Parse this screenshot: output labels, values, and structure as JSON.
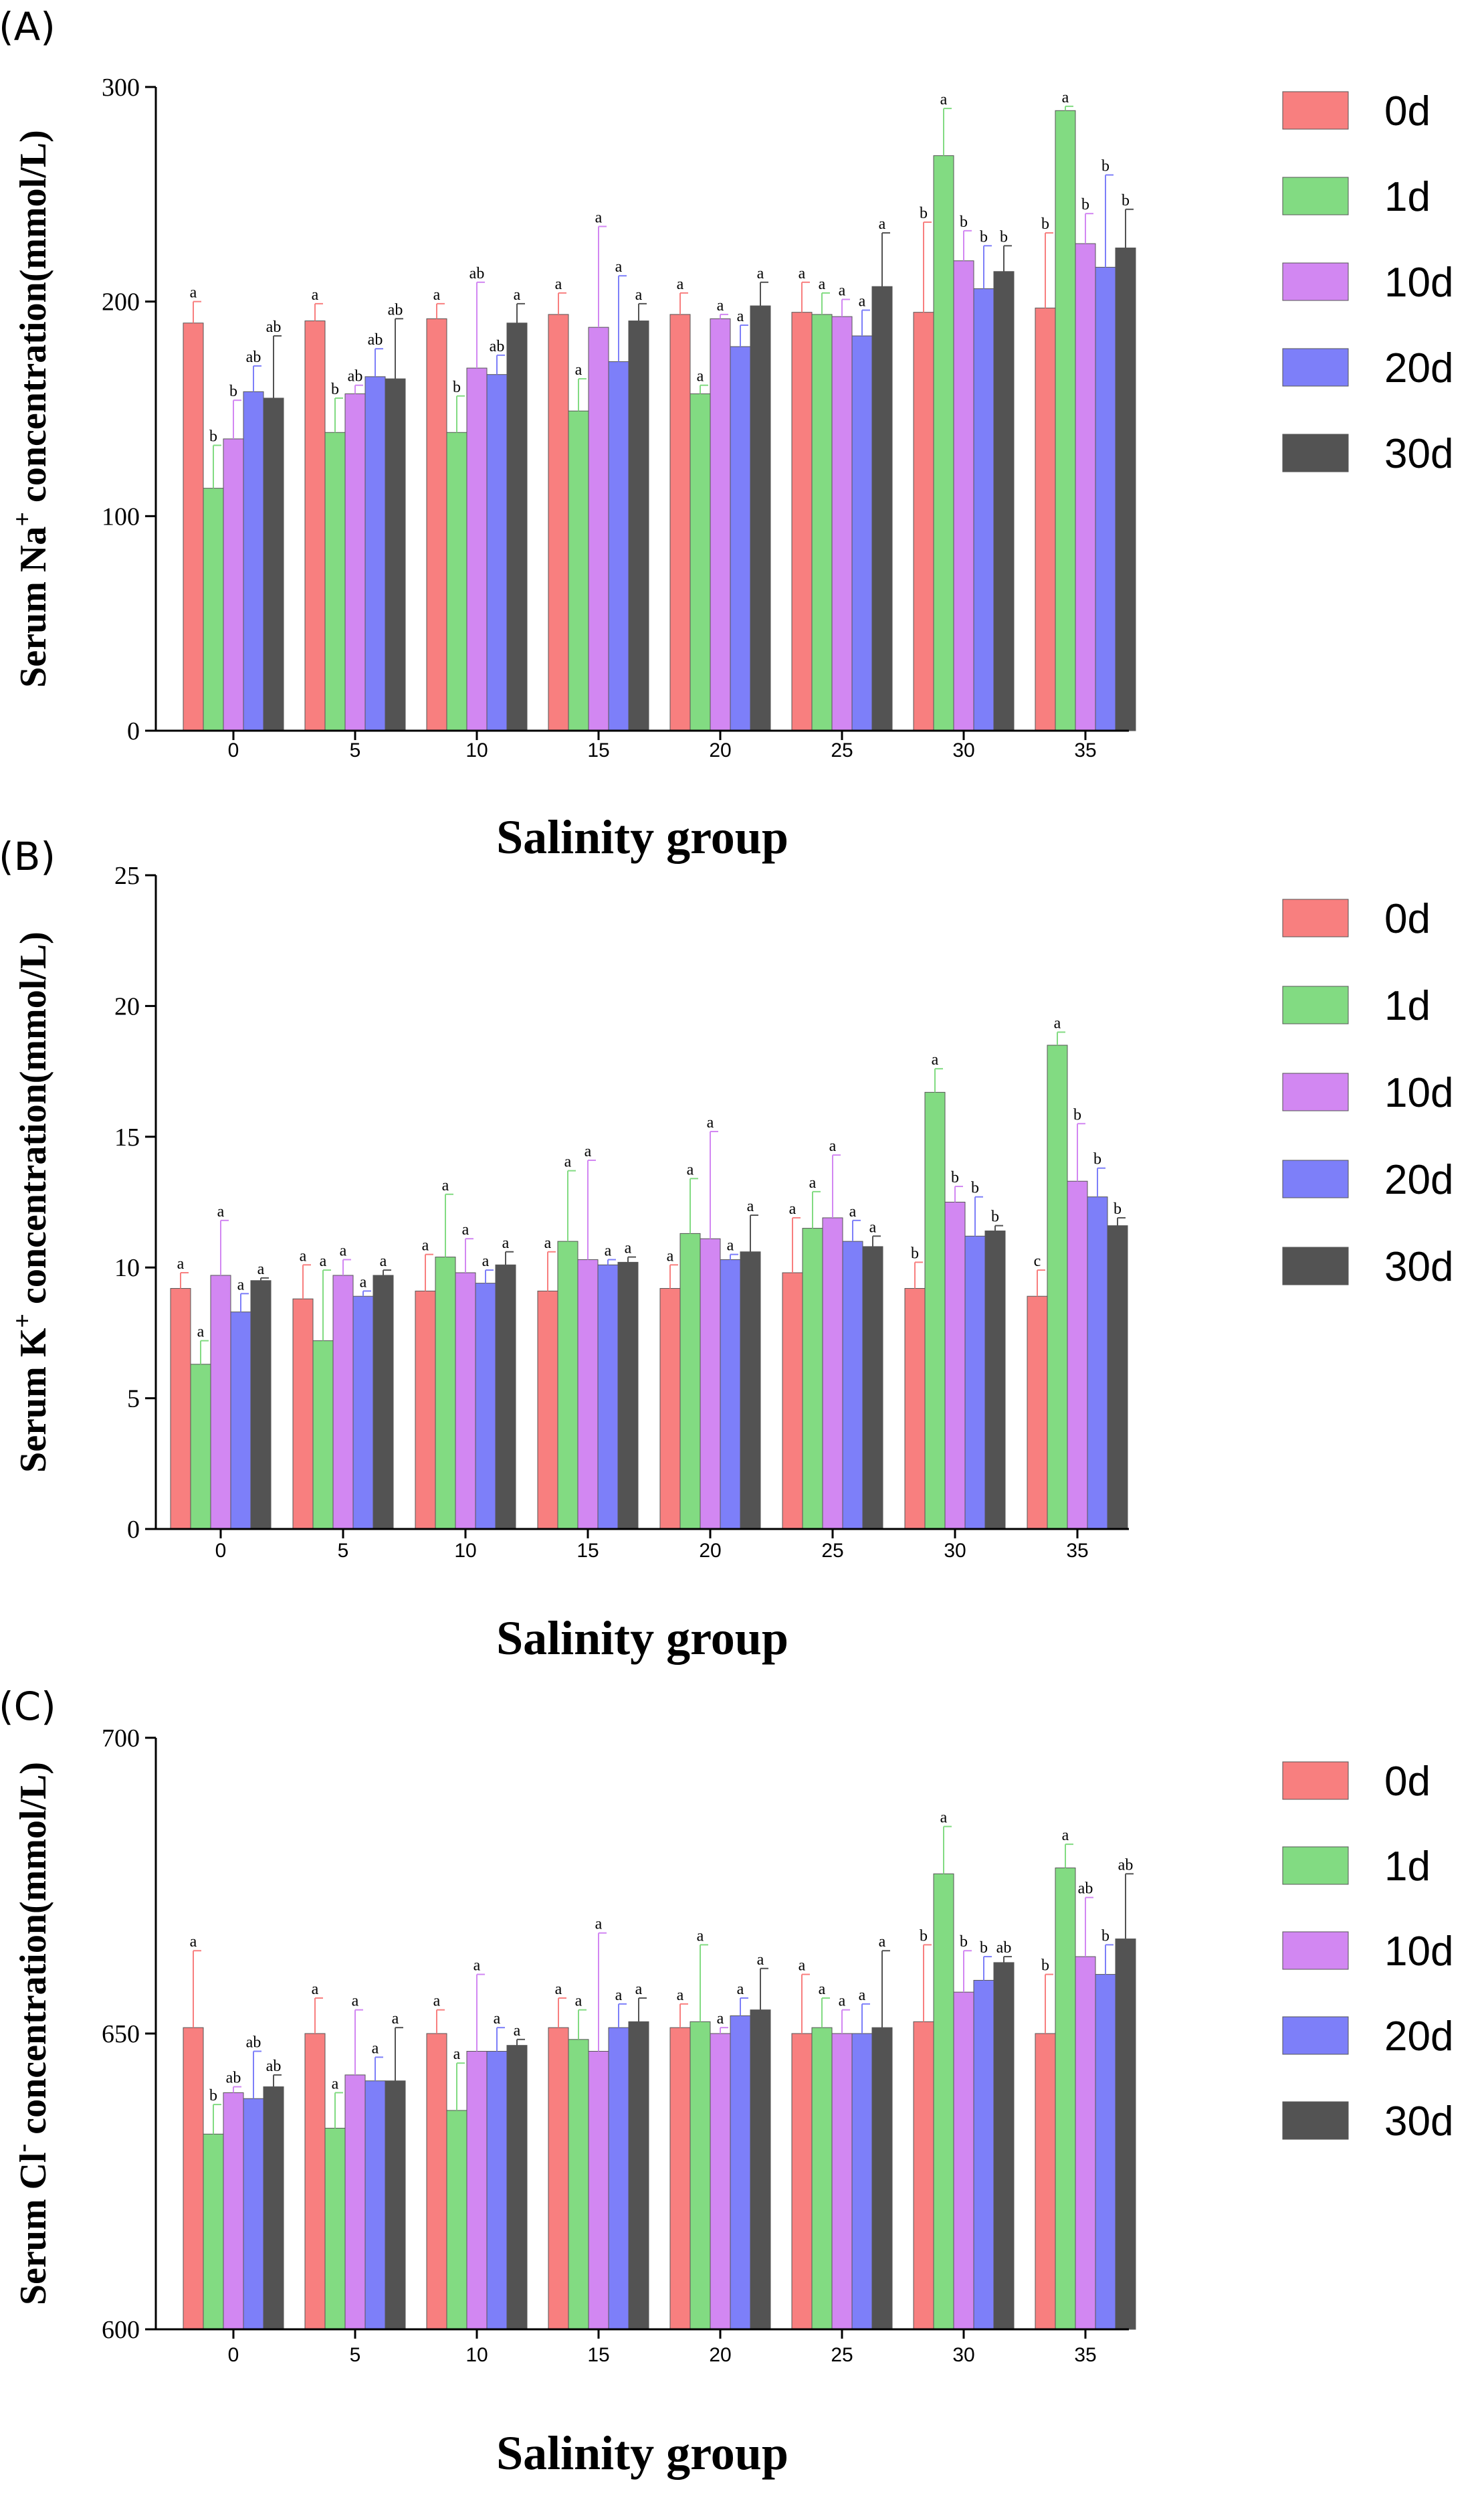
{
  "chart_data": [
    {
      "type": "bar",
      "panel_label": "(A)",
      "ylabel_prefix": "Serum Na",
      "ylabel_sup": "+",
      "ylabel_suffix": " concentration(mmol/L)",
      "xlabel": "Salinity group",
      "categories": [
        "0",
        "5",
        "10",
        "15",
        "20",
        "25",
        "30",
        "35"
      ],
      "ylim": [
        0,
        300
      ],
      "yticks": [
        0,
        100,
        200,
        300
      ],
      "series": [
        {
          "name": "0d",
          "color": "#f87f7f",
          "values": [
            190,
            191,
            192,
            194,
            194,
            195,
            195,
            197
          ],
          "errors": [
            10,
            8,
            7,
            10,
            10,
            14,
            42,
            35
          ],
          "letters": [
            "a",
            "a",
            "a",
            "a",
            "a",
            "a",
            "b",
            "b"
          ]
        },
        {
          "name": "1d",
          "color": "#82db82",
          "values": [
            113,
            139,
            139,
            149,
            157,
            194,
            268,
            289
          ],
          "errors": [
            20,
            16,
            17,
            15,
            4,
            10,
            22,
            2
          ],
          "letters": [
            "b",
            "b",
            "b",
            "a",
            "a",
            "a",
            "a",
            "a"
          ]
        },
        {
          "name": "10d",
          "color": "#d287f2",
          "values": [
            136,
            157,
            169,
            188,
            192,
            193,
            219,
            227
          ],
          "errors": [
            18,
            4,
            40,
            47,
            2,
            8,
            14,
            14
          ],
          "letters": [
            "b",
            "ab",
            "ab",
            "a",
            "a",
            "a",
            "b",
            "b"
          ]
        },
        {
          "name": "20d",
          "color": "#7d7ff9",
          "values": [
            158,
            165,
            166,
            172,
            179,
            184,
            206,
            216
          ],
          "errors": [
            12,
            13,
            9,
            40,
            10,
            12,
            20,
            43
          ],
          "letters": [
            "ab",
            "ab",
            "ab",
            "a",
            "a",
            "a",
            "b",
            "b"
          ]
        },
        {
          "name": "30d",
          "color": "#535353",
          "values": [
            155,
            164,
            190,
            191,
            198,
            207,
            214,
            225
          ],
          "errors": [
            29,
            28,
            9,
            8,
            11,
            25,
            12,
            18
          ],
          "letters": [
            "ab",
            "ab",
            "a",
            "a",
            "a",
            "a",
            "b",
            "b"
          ]
        }
      ]
    },
    {
      "type": "bar",
      "panel_label": "(B)",
      "ylabel_prefix": "Serum K",
      "ylabel_sup": "+",
      "ylabel_suffix": " concentration(mmol/L)",
      "xlabel": "Salinity group",
      "categories": [
        "0",
        "5",
        "10",
        "15",
        "20",
        "25",
        "30",
        "35"
      ],
      "ylim": [
        0,
        25
      ],
      "yticks": [
        0,
        5,
        10,
        15,
        20,
        25
      ],
      "series": [
        {
          "name": "0d",
          "color": "#f87f7f",
          "values": [
            9.2,
            8.8,
            9.1,
            9.1,
            9.2,
            9.8,
            9.2,
            8.9
          ],
          "errors": [
            0.6,
            1.3,
            1.4,
            1.5,
            0.9,
            2.1,
            1.0,
            1.0
          ],
          "letters": [
            "a",
            "a",
            "a",
            "a",
            "a",
            "a",
            "b",
            "c"
          ]
        },
        {
          "name": "1d",
          "color": "#82db82",
          "values": [
            6.3,
            7.2,
            10.4,
            11.0,
            11.3,
            11.5,
            16.7,
            18.5
          ],
          "errors": [
            0.9,
            2.7,
            2.4,
            2.7,
            2.1,
            1.4,
            0.9,
            0.5
          ],
          "letters": [
            "a",
            "a",
            "a",
            "a",
            "a",
            "a",
            "a",
            "a"
          ]
        },
        {
          "name": "10d",
          "color": "#d287f2",
          "values": [
            9.7,
            9.7,
            9.8,
            10.3,
            11.1,
            11.9,
            12.5,
            13.3
          ],
          "errors": [
            2.1,
            0.6,
            1.3,
            3.8,
            4.1,
            2.4,
            0.6,
            2.2
          ],
          "letters": [
            "a",
            "a",
            "a",
            "a",
            "a",
            "a",
            "b",
            "b"
          ]
        },
        {
          "name": "20d",
          "color": "#7d7ff9",
          "values": [
            8.3,
            8.9,
            9.4,
            10.1,
            10.3,
            11.0,
            11.2,
            12.7
          ],
          "errors": [
            0.7,
            0.2,
            0.5,
            0.2,
            0.2,
            0.8,
            1.5,
            1.1
          ],
          "letters": [
            "a",
            "a",
            "a",
            "a",
            "a",
            "a",
            "b",
            "b"
          ]
        },
        {
          "name": "30d",
          "color": "#535353",
          "values": [
            9.5,
            9.7,
            10.1,
            10.2,
            10.6,
            10.8,
            11.4,
            11.6
          ],
          "errors": [
            0.1,
            0.2,
            0.5,
            0.2,
            1.4,
            0.4,
            0.2,
            0.3
          ],
          "letters": [
            "a",
            "a",
            "a",
            "a",
            "a",
            "a",
            "b",
            "b"
          ]
        }
      ]
    },
    {
      "type": "bar",
      "panel_label": "(C)",
      "ylabel_prefix": "Serum Cl",
      "ylabel_sup": "-",
      "ylabel_suffix": " concentration(mmol/L)",
      "xlabel": "Salinity group",
      "categories": [
        "0",
        "5",
        "10",
        "15",
        "20",
        "25",
        "30",
        "35"
      ],
      "ylim": [
        600,
        700
      ],
      "yticks": [
        600,
        650,
        700
      ],
      "series": [
        {
          "name": "0d",
          "color": "#f87f7f",
          "values": [
            651,
            650,
            650,
            651,
            651,
            650,
            652,
            650
          ],
          "errors": [
            13,
            6,
            4,
            5,
            4,
            10,
            13,
            10
          ],
          "letters": [
            "a",
            "a",
            "a",
            "a",
            "a",
            "a",
            "b",
            "b"
          ]
        },
        {
          "name": "1d",
          "color": "#82db82",
          "values": [
            633,
            634,
            637,
            649,
            652,
            651,
            677,
            678
          ],
          "errors": [
            5,
            6,
            8,
            5,
            13,
            5,
            8,
            4
          ],
          "letters": [
            "b",
            "a",
            "a",
            "a",
            "a",
            "a",
            "a",
            "a"
          ]
        },
        {
          "name": "10d",
          "color": "#d287f2",
          "values": [
            640,
            643,
            647,
            647,
            650,
            650,
            657,
            663
          ],
          "errors": [
            1,
            11,
            13,
            20,
            1,
            4,
            7,
            10
          ],
          "letters": [
            "ab",
            "a",
            "a",
            "a",
            "a",
            "a",
            "b",
            "ab"
          ]
        },
        {
          "name": "20d",
          "color": "#7d7ff9",
          "values": [
            639,
            642,
            647,
            651,
            653,
            650,
            659,
            660
          ],
          "errors": [
            8,
            4,
            4,
            4,
            3,
            5,
            4,
            5
          ],
          "letters": [
            "ab",
            "a",
            "a",
            "a",
            "a",
            "a",
            "b",
            "b"
          ]
        },
        {
          "name": "30d",
          "color": "#535353",
          "values": [
            641,
            642,
            648,
            652,
            654,
            651,
            662,
            666
          ],
          "errors": [
            2,
            9,
            1,
            4,
            7,
            13,
            1,
            11
          ],
          "letters": [
            "ab",
            "a",
            "a",
            "a",
            "a",
            "a",
            "ab",
            "ab"
          ]
        }
      ]
    }
  ]
}
